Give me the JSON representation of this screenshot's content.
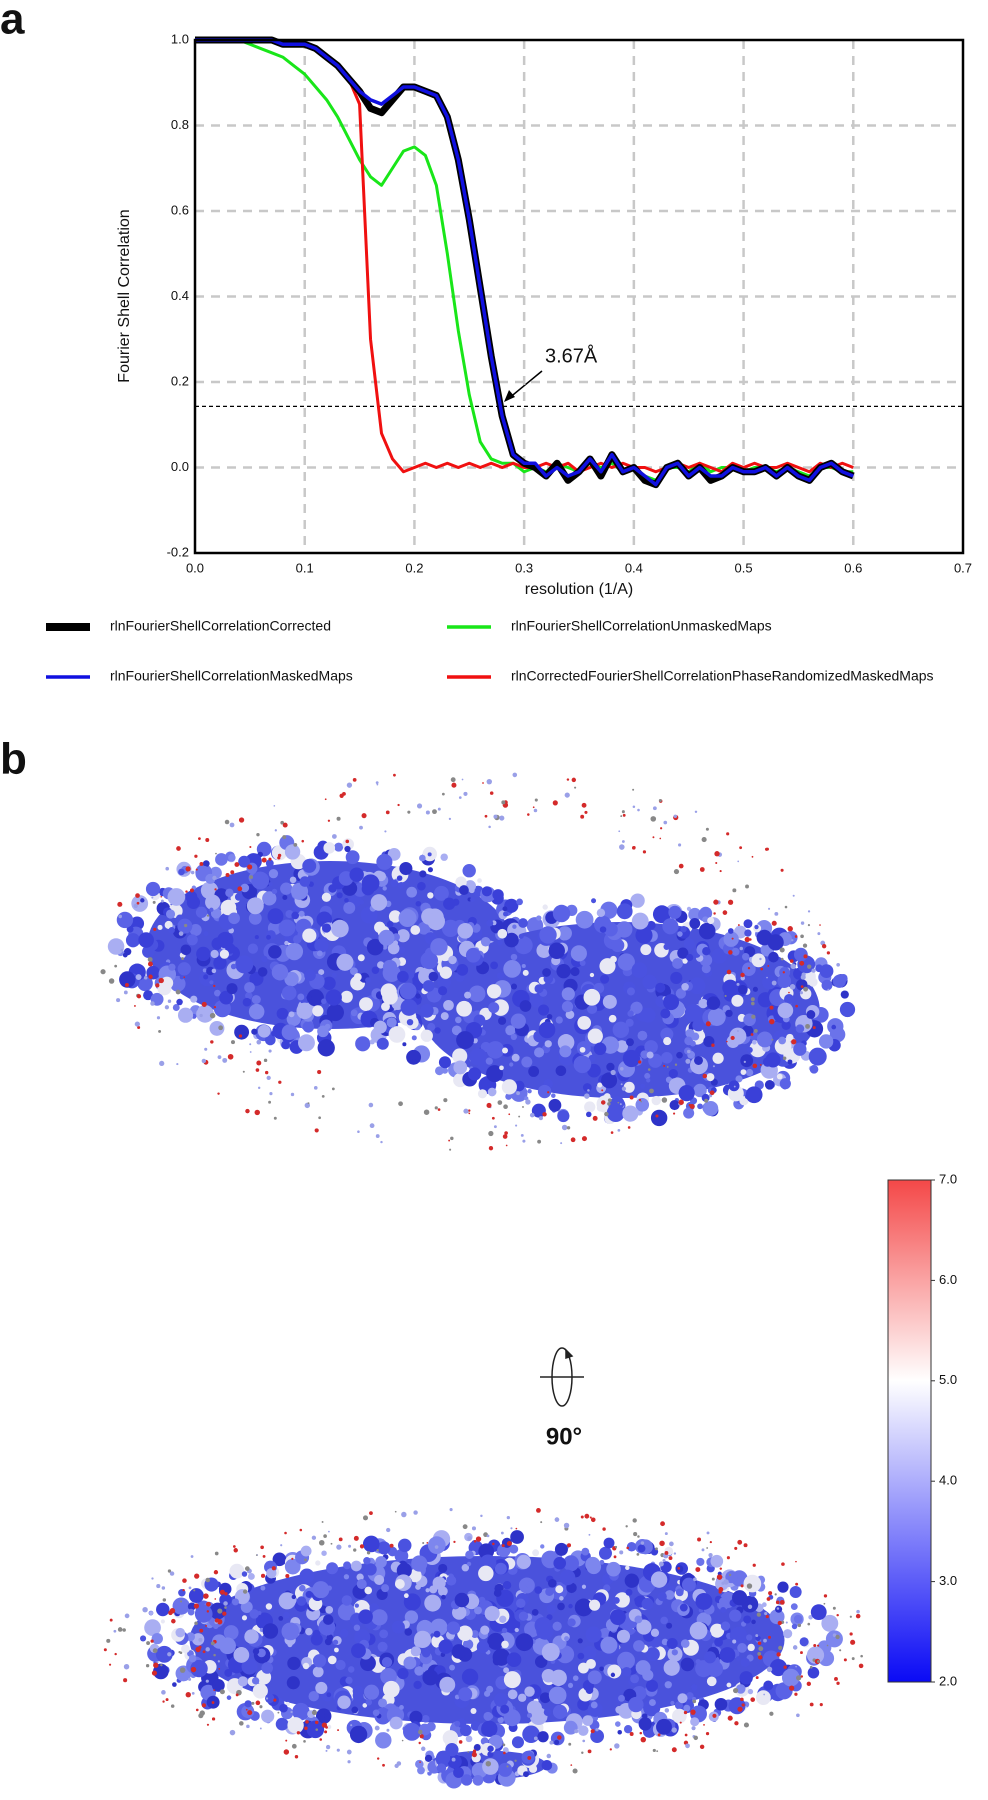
{
  "figure": {
    "panel_a": "a",
    "panel_b": "b",
    "rotation_label": "90°"
  },
  "chart_data": [
    {
      "type": "line",
      "xlabel": "resolution (1/A)",
      "ylabel": "Fourier Shell Correlation",
      "annotation": "3.67Å",
      "threshold": 0.143,
      "xlim": [
        0,
        0.7
      ],
      "ylim": [
        -0.2,
        1.0
      ],
      "xticks": [
        {
          "value": 0,
          "label": "0.0"
        },
        0.1,
        0.2,
        0.3,
        0.4,
        0.5,
        0.6,
        0.7
      ],
      "yticks": [
        -0.2,
        {
          "value": 0,
          "label": "0.0"
        },
        0.2,
        0.4,
        0.6,
        0.8,
        {
          "value": 1,
          "label": "1.0"
        }
      ],
      "grid": true,
      "x": [
        0.0,
        0.01,
        0.02,
        0.03,
        0.04,
        0.05,
        0.06,
        0.07,
        0.08,
        0.09,
        0.1,
        0.11,
        0.12,
        0.13,
        0.14,
        0.15,
        0.16,
        0.17,
        0.18,
        0.19,
        0.2,
        0.21,
        0.22,
        0.23,
        0.24,
        0.25,
        0.26,
        0.27,
        0.28,
        0.29,
        0.3,
        0.31,
        0.32,
        0.33,
        0.34,
        0.35,
        0.36,
        0.37,
        0.38,
        0.39,
        0.4,
        0.41,
        0.42,
        0.43,
        0.44,
        0.45,
        0.46,
        0.47,
        0.48,
        0.49,
        0.5,
        0.51,
        0.52,
        0.53,
        0.54,
        0.55,
        0.56,
        0.57,
        0.58,
        0.59,
        0.6
      ],
      "series": [
        {
          "name": "rlnFourierShellCorrelationCorrected",
          "color": "#000000",
          "values": [
            1.0,
            1.0,
            1.0,
            1.0,
            1.0,
            1.0,
            1.0,
            1.0,
            0.99,
            0.99,
            0.99,
            0.98,
            0.96,
            0.94,
            0.91,
            0.88,
            0.84,
            0.83,
            0.86,
            0.89,
            0.89,
            0.88,
            0.87,
            0.82,
            0.72,
            0.58,
            0.42,
            0.26,
            0.12,
            0.03,
            0.01,
            0.0,
            -0.02,
            0.01,
            -0.03,
            -0.01,
            0.02,
            -0.02,
            0.03,
            -0.01,
            0.0,
            -0.03,
            -0.04,
            0.0,
            0.01,
            -0.02,
            0.0,
            -0.03,
            -0.02,
            0.0,
            -0.01,
            -0.01,
            0.0,
            -0.02,
            0.0,
            -0.02,
            -0.03,
            0.0,
            0.01,
            -0.01,
            -0.02
          ]
        },
        {
          "name": "rlnFourierShellCorrelationUnmaskedMaps",
          "color": "#19e619",
          "values": [
            1.0,
            1.0,
            1.0,
            1.0,
            1.0,
            0.99,
            0.98,
            0.97,
            0.96,
            0.94,
            0.92,
            0.89,
            0.86,
            0.82,
            0.77,
            0.72,
            0.68,
            0.66,
            0.7,
            0.74,
            0.75,
            0.73,
            0.66,
            0.5,
            0.32,
            0.17,
            0.06,
            0.02,
            0.01,
            0.01,
            -0.01,
            0.0,
            -0.01,
            0.01,
            0.0,
            -0.01,
            0.01,
            0.0,
            0.01,
            -0.01,
            0.0,
            -0.02,
            -0.03,
            0.0,
            0.0,
            -0.01,
            0.01,
            -0.01,
            0.0,
            0.0,
            -0.01,
            0.0,
            0.0,
            -0.01,
            0.0,
            -0.01,
            -0.02,
            0.0,
            0.0,
            -0.01,
            -0.01
          ]
        },
        {
          "name": "rlnFourierShellCorrelationMaskedMaps",
          "color": "#1010e0",
          "values": [
            1.0,
            1.0,
            1.0,
            1.0,
            1.0,
            1.0,
            1.0,
            1.0,
            0.99,
            0.99,
            0.99,
            0.98,
            0.96,
            0.94,
            0.91,
            0.88,
            0.86,
            0.85,
            0.87,
            0.89,
            0.89,
            0.88,
            0.87,
            0.82,
            0.72,
            0.58,
            0.42,
            0.26,
            0.12,
            0.03,
            0.01,
            0.01,
            -0.02,
            0.0,
            -0.02,
            -0.01,
            0.02,
            -0.01,
            0.03,
            -0.01,
            0.0,
            -0.02,
            -0.04,
            0.0,
            0.01,
            -0.02,
            0.0,
            -0.02,
            -0.02,
            0.0,
            -0.01,
            -0.01,
            0.0,
            -0.02,
            0.0,
            -0.02,
            -0.03,
            0.0,
            0.01,
            -0.01,
            -0.02
          ]
        },
        {
          "name": "rlnCorrectedFourierShellCorrelationPhaseRandomizedMaskedMaps",
          "color": "#f01010",
          "values": [
            1.0,
            1.0,
            1.0,
            1.0,
            1.0,
            1.0,
            1.0,
            1.0,
            0.99,
            0.99,
            0.99,
            0.98,
            0.96,
            0.94,
            0.91,
            0.85,
            0.3,
            0.08,
            0.02,
            -0.01,
            0.0,
            0.01,
            0.0,
            0.01,
            0.0,
            0.01,
            0.0,
            0.01,
            0.0,
            0.01,
            0.0,
            0.0,
            0.01,
            0.0,
            0.01,
            -0.01,
            0.0,
            0.01,
            0.0,
            0.01,
            0.0,
            0.0,
            -0.01,
            0.0,
            0.01,
            0.0,
            0.01,
            0.0,
            -0.01,
            0.01,
            0.0,
            0.01,
            0.0,
            0.0,
            0.01,
            0.0,
            -0.01,
            0.01,
            0.0,
            0.01,
            0.0
          ]
        }
      ]
    },
    {
      "type": "colorbar",
      "ylim": [
        2,
        7
      ],
      "yticks": [
        {
          "value": 2,
          "label": "2.0"
        },
        {
          "value": 3,
          "label": "3.0"
        },
        {
          "value": 4,
          "label": "4.0"
        },
        {
          "value": 5,
          "label": "5.0"
        },
        {
          "value": 6,
          "label": "6.0"
        },
        {
          "value": 7,
          "label": "7.0"
        }
      ],
      "color_stops": [
        {
          "value": 2,
          "color": "#0a0af5"
        },
        {
          "value": 5,
          "color": "#ffffff"
        },
        {
          "value": 7,
          "color": "#f44848"
        }
      ]
    }
  ]
}
